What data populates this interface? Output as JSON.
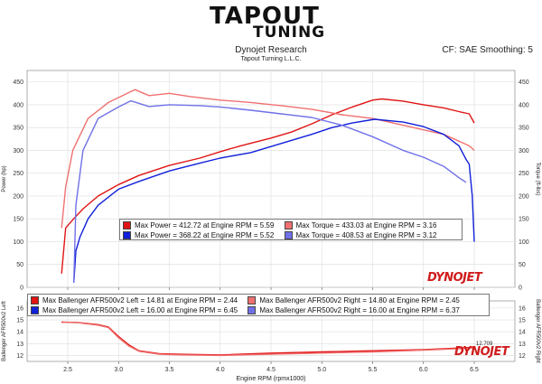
{
  "header": {
    "logo_line1": "TAPOUT",
    "logo_line2": "TUNING",
    "title": "Dynojet Research",
    "subtitle": "Tapout Turning L.L.C.",
    "cf_label": "CF: SAE Smoothing: 5"
  },
  "brand": {
    "logo_top": "DYNOJET",
    "logo_bottom": "DYNOJET"
  },
  "colors": {
    "red_dark": "#e01414",
    "red_light": "#f07070",
    "blue_dark": "#1020d8",
    "blue_light": "#7070e8"
  },
  "chart_data": [
    {
      "type": "line",
      "xlim": [
        2.1,
        6.9
      ],
      "ylim": [
        0,
        475
      ],
      "grid": true,
      "x_ticks": [
        2.5,
        3.0,
        3.5,
        4.0,
        4.5,
        5.0,
        5.5,
        6.0,
        6.5
      ],
      "y_ticks": [
        0,
        50,
        100,
        150,
        200,
        250,
        300,
        350,
        400,
        450
      ],
      "ylabel_left": "Power (hp)",
      "ylabel_right": "Torque (ft-lbs)",
      "legend": [
        [
          "Max Power = 412.72 at Engine RPM = 5.59",
          "Max Torque = 433.03 at Engine RPM = 3.16"
        ],
        [
          "Max Power = 368.22 at Engine RPM = 5.52",
          "Max Torque = 408.53 at Engine RPM = 3.12"
        ]
      ],
      "series": [
        {
          "name": "Max Power = 412.72 at Engine RPM = 5.59",
          "color": "#e01414",
          "x": [
            2.44,
            2.48,
            2.55,
            2.65,
            2.8,
            3.0,
            3.2,
            3.5,
            3.8,
            4.0,
            4.2,
            4.5,
            4.7,
            4.9,
            5.1,
            5.3,
            5.5,
            5.59,
            5.8,
            6.0,
            6.2,
            6.35,
            6.45,
            6.5
          ],
          "y": [
            30,
            130,
            148,
            172,
            200,
            225,
            245,
            267,
            283,
            297,
            310,
            327,
            340,
            358,
            378,
            395,
            410,
            412.72,
            408,
            400,
            393,
            385,
            380,
            360
          ]
        },
        {
          "name": "Max Torque = 433.03 at Engine RPM = 3.16",
          "color": "#f07070",
          "x": [
            2.44,
            2.48,
            2.55,
            2.7,
            2.9,
            3.16,
            3.3,
            3.5,
            3.7,
            4.0,
            4.3,
            4.6,
            4.9,
            5.2,
            5.5,
            5.8,
            6.0,
            6.2,
            6.35,
            6.45,
            6.5
          ],
          "y": [
            130,
            220,
            300,
            370,
            405,
            433.03,
            420,
            425,
            418,
            410,
            405,
            398,
            390,
            378,
            370,
            355,
            345,
            335,
            320,
            310,
            300
          ]
        },
        {
          "name": "Max Power = 368.22 at Engine RPM = 5.52",
          "color": "#1020d8",
          "x": [
            2.56,
            2.58,
            2.62,
            2.7,
            2.8,
            3.0,
            3.2,
            3.5,
            3.8,
            4.0,
            4.3,
            4.6,
            4.9,
            5.1,
            5.3,
            5.52,
            5.8,
            6.0,
            6.2,
            6.35,
            6.42,
            6.45,
            6.48,
            6.5
          ],
          "y": [
            10,
            80,
            110,
            150,
            180,
            215,
            232,
            255,
            272,
            283,
            295,
            315,
            335,
            350,
            360,
            368.22,
            362,
            352,
            335,
            310,
            280,
            270,
            200,
            100
          ]
        },
        {
          "name": "Max Torque = 408.53 at Engine RPM = 3.12",
          "color": "#7070e8",
          "x": [
            2.56,
            2.58,
            2.65,
            2.8,
            3.0,
            3.12,
            3.3,
            3.5,
            3.8,
            4.0,
            4.3,
            4.6,
            4.9,
            5.2,
            5.5,
            5.8,
            6.0,
            6.2,
            6.35,
            6.42
          ],
          "y": [
            10,
            180,
            300,
            370,
            395,
            408.53,
            396,
            400,
            398,
            395,
            388,
            380,
            372,
            355,
            330,
            300,
            285,
            265,
            240,
            230
          ]
        }
      ]
    },
    {
      "type": "line",
      "xlim": [
        2.1,
        6.9
      ],
      "ylim": [
        11.5,
        16.6
      ],
      "grid": true,
      "x_ticks": [
        2.5,
        3.0,
        3.5,
        4.0,
        4.5,
        5.0,
        5.5,
        6.0,
        6.5
      ],
      "x_tick_labels": [
        "2.5",
        "3.0",
        "3.5",
        "4.0",
        "4.5",
        "5.0",
        "5.5",
        "6.0",
        "6.5"
      ],
      "y_ticks": [
        12,
        13,
        14,
        15,
        16
      ],
      "ylabel_left": "Ballenger AFR500v2 Left",
      "ylabel_right": "Ballenger AFR500v2 Right",
      "xlabel": "Engine RPM (rpmx1000)",
      "end_label": "12.709",
      "legend": [
        [
          "Max Ballenger AFR500v2 Left = 14.81 at Engine RPM = 2.44",
          "Max Ballenger AFR500v2 Right = 14.80 at Engine RPM = 2.45"
        ],
        [
          "Max Ballenger AFR500v2 Left = 16.00 at Engine RPM = 6.45",
          "Max Ballenger AFR500v2 Right = 16.00 at Engine RPM = 6.37"
        ]
      ],
      "series": [
        {
          "name": "Max Ballenger AFR500v2 Left = 14.81 at Engine RPM = 2.44",
          "color": "#e01414",
          "x": [
            2.44,
            2.6,
            2.8,
            2.9,
            3.0,
            3.1,
            3.2,
            3.4,
            3.6,
            4.0,
            4.5,
            5.0,
            5.5,
            6.0,
            6.3,
            6.5
          ],
          "y": [
            14.81,
            14.78,
            14.6,
            14.4,
            13.6,
            12.9,
            12.4,
            12.15,
            12.1,
            12.05,
            12.2,
            12.3,
            12.4,
            12.5,
            12.6,
            12.7
          ]
        },
        {
          "name": "Max Ballenger AFR500v2 Right = 14.80 at Engine RPM = 2.45",
          "color": "#f07070",
          "x": [
            2.45,
            2.6,
            2.8,
            2.9,
            3.0,
            3.1,
            3.2,
            3.4,
            3.6,
            4.0,
            4.5,
            5.0,
            5.5,
            6.0,
            6.3,
            6.5
          ],
          "y": [
            14.8,
            14.76,
            14.55,
            14.35,
            13.5,
            12.8,
            12.35,
            12.1,
            12.05,
            12.0,
            12.1,
            12.2,
            12.3,
            12.45,
            12.55,
            12.65
          ]
        }
      ]
    }
  ]
}
